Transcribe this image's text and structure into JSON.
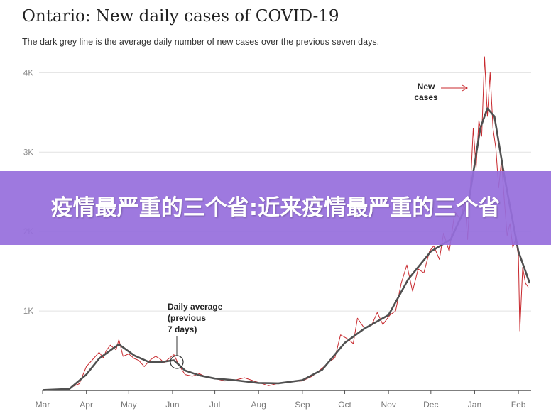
{
  "banner": {
    "text": "疫情最严重的三个省:近来疫情最严重的三个省",
    "color": "#9a72dc"
  },
  "chart_data": {
    "type": "line",
    "title": "Ontario: New daily cases of COVID-19",
    "subtitle": "The dark grey line is the average daily number of new cases over the previous seven days.",
    "xlabel": "",
    "ylabel": "",
    "x_ticks": [
      "Mar",
      "Apr",
      "May",
      "Jun",
      "Jul",
      "Aug",
      "Sep",
      "Oct",
      "Nov",
      "Dec",
      "Jan",
      "Feb"
    ],
    "y_ticks": [
      {
        "value": 1000,
        "label": "1K"
      },
      {
        "value": 2000,
        "label": "2K"
      },
      {
        "value": 3000,
        "label": "3K"
      },
      {
        "value": 4000,
        "label": "4K"
      }
    ],
    "xlim": [
      "2020-03-01",
      "2021-02-10"
    ],
    "ylim": [
      0,
      4200
    ],
    "grid": "horizontal",
    "series": [
      {
        "role": "daily",
        "color": "#c8282d",
        "points": [
          [
            "2020-03-01",
            5
          ],
          [
            "2020-03-10",
            10
          ],
          [
            "2020-03-20",
            30
          ],
          [
            "2020-03-27",
            85
          ],
          [
            "2020-04-01",
            300
          ],
          [
            "2020-04-05",
            380
          ],
          [
            "2020-04-10",
            480
          ],
          [
            "2020-04-13",
            410
          ],
          [
            "2020-04-15",
            500
          ],
          [
            "2020-04-18",
            570
          ],
          [
            "2020-04-22",
            510
          ],
          [
            "2020-04-24",
            640
          ],
          [
            "2020-04-27",
            430
          ],
          [
            "2020-05-01",
            460
          ],
          [
            "2020-05-05",
            400
          ],
          [
            "2020-05-08",
            380
          ],
          [
            "2020-05-12",
            300
          ],
          [
            "2020-05-16",
            380
          ],
          [
            "2020-05-20",
            430
          ],
          [
            "2020-05-23",
            400
          ],
          [
            "2020-05-26",
            350
          ],
          [
            "2020-05-30",
            410
          ],
          [
            "2020-06-02",
            450
          ],
          [
            "2020-06-05",
            340
          ],
          [
            "2020-06-08",
            250
          ],
          [
            "2020-06-10",
            200
          ],
          [
            "2020-06-15",
            180
          ],
          [
            "2020-06-20",
            210
          ],
          [
            "2020-06-25",
            170
          ],
          [
            "2020-07-01",
            150
          ],
          [
            "2020-07-08",
            120
          ],
          [
            "2020-07-15",
            130
          ],
          [
            "2020-07-22",
            160
          ],
          [
            "2020-07-27",
            130
          ],
          [
            "2020-08-01",
            100
          ],
          [
            "2020-08-08",
            60
          ],
          [
            "2020-08-15",
            90
          ],
          [
            "2020-08-22",
            110
          ],
          [
            "2020-09-01",
            120
          ],
          [
            "2020-09-08",
            180
          ],
          [
            "2020-09-15",
            280
          ],
          [
            "2020-09-20",
            360
          ],
          [
            "2020-09-24",
            410
          ],
          [
            "2020-09-28",
            700
          ],
          [
            "2020-10-03",
            650
          ],
          [
            "2020-10-07",
            590
          ],
          [
            "2020-10-10",
            910
          ],
          [
            "2020-10-15",
            780
          ],
          [
            "2020-10-20",
            820
          ],
          [
            "2020-10-24",
            980
          ],
          [
            "2020-10-28",
            830
          ],
          [
            "2020-11-02",
            950
          ],
          [
            "2020-11-06",
            1000
          ],
          [
            "2020-11-10",
            1350
          ],
          [
            "2020-11-14",
            1580
          ],
          [
            "2020-11-18",
            1250
          ],
          [
            "2020-11-22",
            1530
          ],
          [
            "2020-11-26",
            1480
          ],
          [
            "2020-11-30",
            1750
          ],
          [
            "2020-12-03",
            1820
          ],
          [
            "2020-12-07",
            1650
          ],
          [
            "2020-12-10",
            1980
          ],
          [
            "2020-12-14",
            1750
          ],
          [
            "2020-12-18",
            2250
          ],
          [
            "2020-12-22",
            2150
          ],
          [
            "2020-12-25",
            2400
          ],
          [
            "2020-12-27",
            1900
          ],
          [
            "2020-12-29",
            2550
          ],
          [
            "2020-12-31",
            3300
          ],
          [
            "2021-01-02",
            2800
          ],
          [
            "2021-01-04",
            3400
          ],
          [
            "2021-01-06",
            3200
          ],
          [
            "2021-01-08",
            4200
          ],
          [
            "2021-01-10",
            3450
          ],
          [
            "2021-01-12",
            4000
          ],
          [
            "2021-01-14",
            3300
          ],
          [
            "2021-01-16",
            3050
          ],
          [
            "2021-01-18",
            2550
          ],
          [
            "2021-01-20",
            2900
          ],
          [
            "2021-01-22",
            2400
          ],
          [
            "2021-01-24",
            1950
          ],
          [
            "2021-01-26",
            2100
          ],
          [
            "2021-01-28",
            1800
          ],
          [
            "2021-01-30",
            1900
          ],
          [
            "2021-02-01",
            1700
          ],
          [
            "2021-02-02",
            750
          ],
          [
            "2021-02-04",
            1550
          ],
          [
            "2021-02-06",
            1350
          ],
          [
            "2021-02-08",
            1300
          ]
        ]
      },
      {
        "role": "7-day average",
        "color": "#505050",
        "points": [
          [
            "2020-03-01",
            5
          ],
          [
            "2020-03-20",
            20
          ],
          [
            "2020-04-01",
            200
          ],
          [
            "2020-04-10",
            400
          ],
          [
            "2020-04-20",
            530
          ],
          [
            "2020-04-24",
            580
          ],
          [
            "2020-05-05",
            440
          ],
          [
            "2020-05-15",
            360
          ],
          [
            "2020-05-25",
            360
          ],
          [
            "2020-06-02",
            380
          ],
          [
            "2020-06-10",
            250
          ],
          [
            "2020-06-20",
            190
          ],
          [
            "2020-07-01",
            150
          ],
          [
            "2020-07-15",
            130
          ],
          [
            "2020-08-01",
            95
          ],
          [
            "2020-08-15",
            90
          ],
          [
            "2020-09-01",
            130
          ],
          [
            "2020-09-15",
            260
          ],
          [
            "2020-10-01",
            600
          ],
          [
            "2020-10-15",
            780
          ],
          [
            "2020-11-01",
            950
          ],
          [
            "2020-11-15",
            1400
          ],
          [
            "2020-12-01",
            1750
          ],
          [
            "2020-12-15",
            1900
          ],
          [
            "2020-12-28",
            2400
          ],
          [
            "2021-01-05",
            3300
          ],
          [
            "2021-01-10",
            3550
          ],
          [
            "2021-01-15",
            3450
          ],
          [
            "2021-01-22",
            2700
          ],
          [
            "2021-02-01",
            1750
          ],
          [
            "2021-02-09",
            1350
          ]
        ]
      }
    ],
    "annotations": [
      {
        "text": "New\ncases",
        "arrow": "right"
      },
      {
        "text": "Daily average\n(previous\n7 days)",
        "arrow": "down"
      }
    ]
  }
}
